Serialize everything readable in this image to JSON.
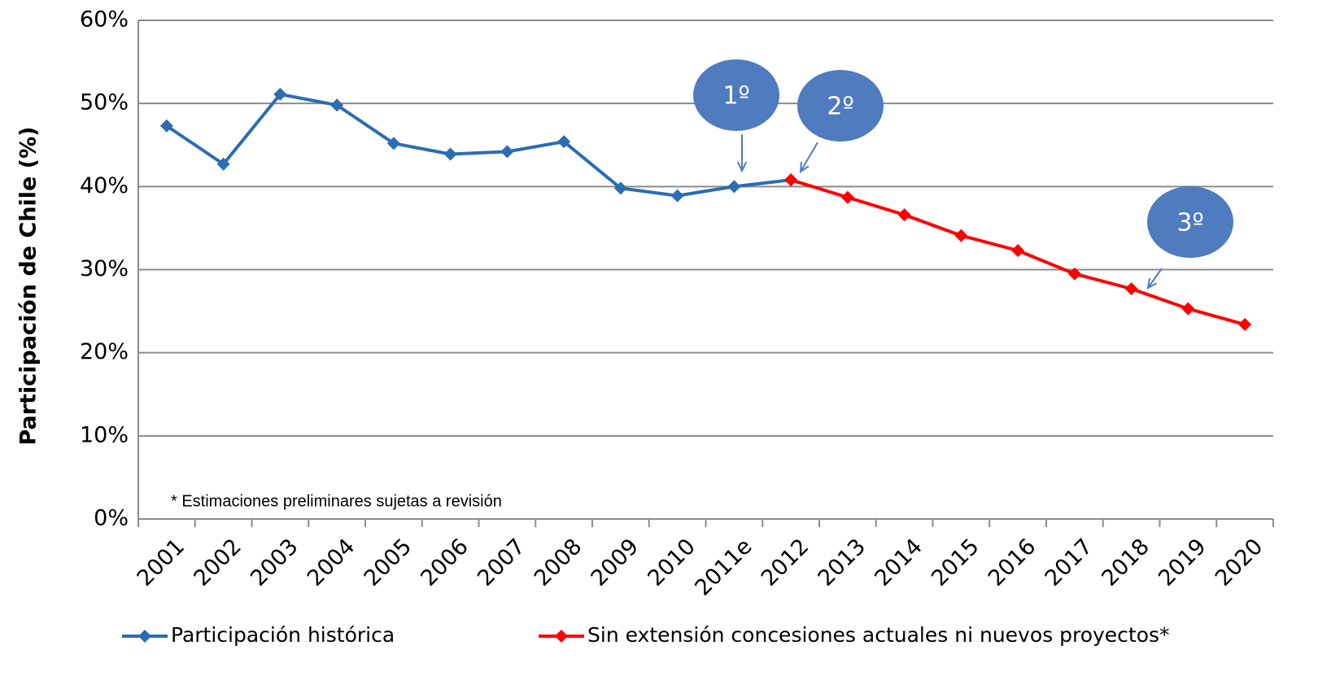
{
  "chart_data": {
    "type": "line",
    "y_label": "Participación de Chile (%)",
    "annotations": [
      "* Estimaciones preliminares sujetas a revisión",
      "1º",
      "2º",
      "3º"
    ],
    "categories": [
      "2001",
      "2002",
      "2003",
      "2004",
      "2005",
      "2006",
      "2007",
      "2008",
      "2009",
      "2010",
      "2011e",
      "2012",
      "2013",
      "2014",
      "2015",
      "2016",
      "2017",
      "2018",
      "2019",
      "2020"
    ],
    "series": [
      {
        "name": "Participación histórica",
        "color": "#2a6db3",
        "values": [
          47.3,
          42.7,
          51.1,
          49.8,
          45.2,
          43.9,
          44.2,
          45.4,
          39.8,
          38.9,
          40.0,
          40.8,
          null,
          null,
          null,
          null,
          null,
          null,
          null,
          null
        ]
      },
      {
        "name": "Sin extensión concesiones actuales ni nuevos proyectos*",
        "color": "#ff0000",
        "values": [
          null,
          null,
          null,
          null,
          null,
          null,
          null,
          null,
          null,
          null,
          null,
          40.8,
          38.7,
          36.6,
          34.1,
          32.3,
          29.5,
          27.7,
          25.3,
          23.4
        ]
      }
    ],
    "ylim": [
      0,
      60
    ],
    "yticks": [
      {
        "value": 0,
        "label": "0%"
      },
      {
        "value": 10,
        "label": "10%"
      },
      {
        "value": 20,
        "label": "20%"
      },
      {
        "value": 30,
        "label": "30%"
      },
      {
        "value": 40,
        "label": "40%"
      },
      {
        "value": 50,
        "label": "50%"
      },
      {
        "value": 60,
        "label": "60%"
      }
    ],
    "grid": true,
    "legend": "bottom"
  }
}
